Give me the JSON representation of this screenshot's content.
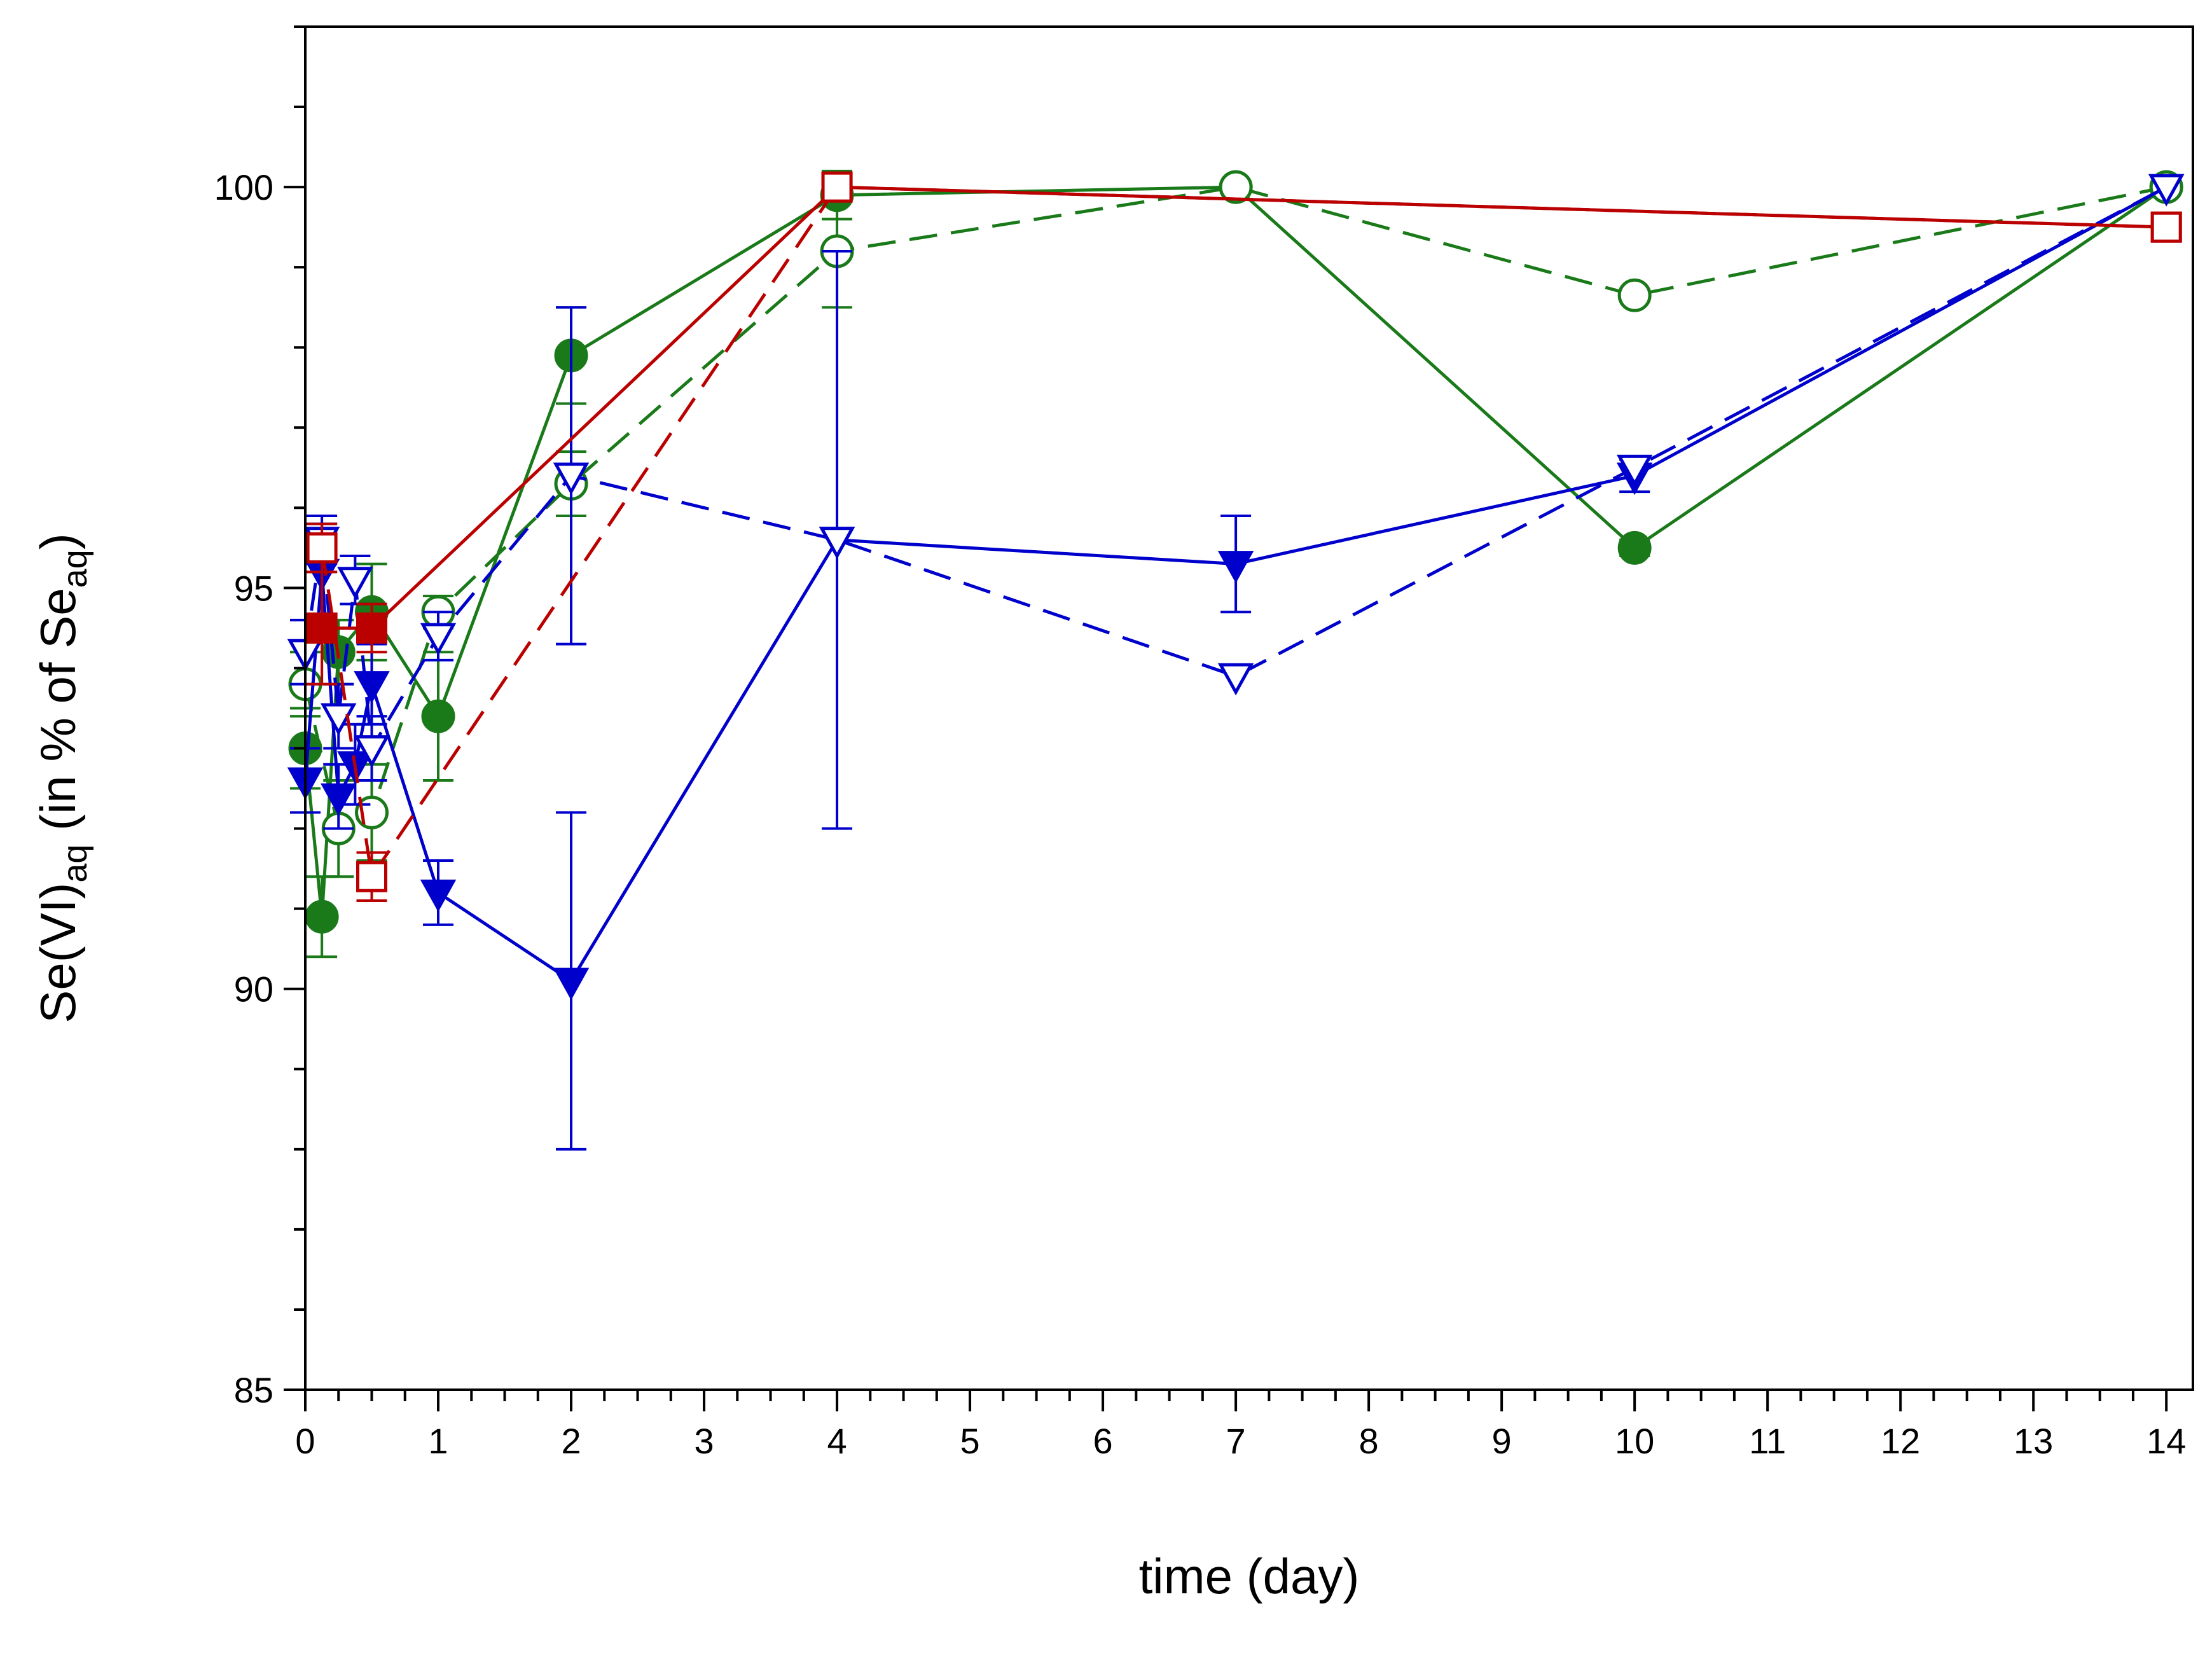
{
  "chart_data": {
    "type": "line",
    "title": "",
    "xlabel": "time (day)",
    "ylabel": {
      "main": "Se(VI)",
      "sub1": "aq",
      "mid": " (in % of Se",
      "sub2": "aq",
      "end": ")"
    },
    "xlim": [
      0,
      14.2
    ],
    "ylim": [
      85,
      102
    ],
    "x_ticks": [
      "0",
      "1",
      "2",
      "3",
      "4",
      "5",
      "6",
      "7",
      "8",
      "9",
      "10",
      "11",
      "12",
      "13",
      "14"
    ],
    "y_ticks": [
      "85",
      "90",
      "95",
      "100"
    ],
    "grid": false,
    "legend": "none",
    "series": [
      {
        "name": "green-filled-circle-solid",
        "color": "#1a7a1a",
        "line": "solid",
        "marker": "circle",
        "filled": true,
        "x": [
          0,
          0.125,
          0.25,
          0.5,
          1,
          2,
          4,
          7,
          10,
          14
        ],
        "y": [
          93.0,
          90.9,
          94.2,
          94.7,
          93.4,
          97.9,
          99.9,
          100,
          95.5,
          100
        ],
        "err": [
          0.5,
          0.5,
          0.4,
          0.6,
          0.8,
          0.6,
          0.3,
          0,
          0.1,
          0
        ]
      },
      {
        "name": "green-open-circle-dashed",
        "color": "#1a7a1a",
        "line": "dashed",
        "marker": "circle",
        "filled": false,
        "x": [
          0,
          0.25,
          0.5,
          1,
          2,
          4,
          7,
          10,
          14
        ],
        "y": [
          93.8,
          92.0,
          92.2,
          94.7,
          96.3,
          99.2,
          100,
          98.65,
          100
        ],
        "err": [
          0.4,
          0.6,
          0.6,
          0.2,
          0.4,
          0.7,
          0,
          0,
          0
        ]
      },
      {
        "name": "blue-filled-triangle-solid",
        "color": "#0000cc",
        "line": "solid",
        "marker": "triangle-down",
        "filled": true,
        "x": [
          0,
          0.125,
          0.25,
          0.375,
          0.5,
          1,
          2,
          4,
          7,
          10,
          14
        ],
        "y": [
          92.6,
          95.2,
          92.4,
          92.8,
          93.8,
          91.2,
          90.1,
          95.6,
          95.3,
          96.4,
          100
        ],
        "err": [
          0.4,
          0.6,
          0.4,
          0.5,
          0.5,
          0.4,
          2.1,
          3.6,
          0.6,
          0.2,
          0
        ]
      },
      {
        "name": "blue-open-triangle-dashed",
        "color": "#0000cc",
        "line": "dashed",
        "marker": "triangle-down",
        "filled": false,
        "x": [
          0,
          0.125,
          0.25,
          0.375,
          0.5,
          1,
          2,
          4,
          7,
          10,
          14
        ],
        "y": [
          94.2,
          95.6,
          93.4,
          95.1,
          93.0,
          94.4,
          96.4,
          95.6,
          93.9,
          96.5,
          100
        ],
        "err": [
          0.4,
          0.3,
          0.4,
          0.3,
          0.4,
          0.3,
          2.1,
          0,
          0,
          0,
          0
        ]
      },
      {
        "name": "red-filled-square-solid",
        "color": "#bb0000",
        "line": "solid",
        "marker": "square",
        "filled": true,
        "x": [
          0.125,
          0.5,
          4,
          14
        ],
        "y": [
          94.5,
          94.5,
          100,
          99.5
        ],
        "err": [
          0.7,
          0.3,
          0,
          0
        ]
      },
      {
        "name": "red-open-square-dashed",
        "color": "#bb0000",
        "line": "dashed",
        "marker": "square",
        "filled": false,
        "x": [
          0.125,
          0.5,
          4,
          14
        ],
        "y": [
          95.5,
          91.4,
          100,
          99.5
        ],
        "err": [
          0.3,
          0.3,
          0,
          0
        ]
      }
    ]
  }
}
